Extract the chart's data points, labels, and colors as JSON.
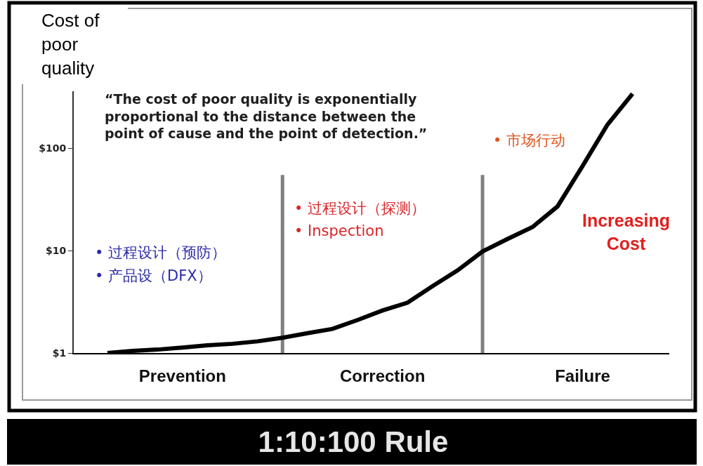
{
  "chart_data": {
    "type": "line",
    "title": "1:10:100 Rule",
    "ylabel": "Cost of poor quality",
    "annotations": [
      "“The cost of poor quality is exponentially proportional to the distance between the point of cause and the point of detection.”",
      "• 过程设计（预防）",
      "• 产品设（DFX）",
      "• 过程设计（探测）",
      "• Inspection",
      "• 市场行动",
      "Increasing Cost"
    ],
    "categories": [
      null,
      null,
      null,
      "Prevention",
      null,
      null,
      null,
      null,
      null,
      null,
      null,
      "Correction",
      null,
      null,
      null,
      null,
      null,
      null,
      null,
      "Failure",
      null,
      null
    ],
    "series": [
      {
        "color": "#000000",
        "values": [
          1.0,
          1.05,
          1.08,
          1.13,
          1.19,
          1.23,
          1.3,
          1.41,
          1.56,
          1.72,
          2.1,
          2.6,
          3.1,
          4.5,
          6.4,
          9.8,
          13,
          17,
          27,
          67,
          170,
          340
        ]
      }
    ],
    "ylim": [
      1,
      360
    ],
    "yticks": [
      {
        "value": 1,
        "label": "$1"
      },
      {
        "value": 10,
        "label": "$10"
      },
      {
        "value": 100,
        "label": "$100"
      }
    ],
    "log": true,
    "line_style": "solid"
  }
}
